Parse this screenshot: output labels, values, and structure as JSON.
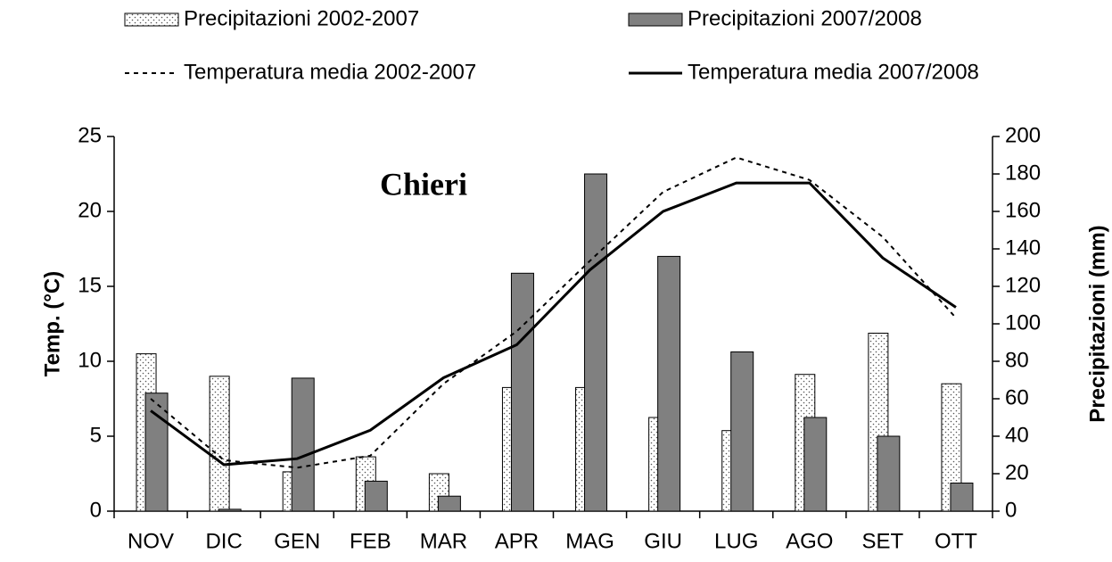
{
  "chart_data": {
    "type": "bar",
    "title": "Chieri",
    "categories": [
      "NOV",
      "DIC",
      "GEN",
      "FEB",
      "MAR",
      "APR",
      "MAG",
      "GIU",
      "LUG",
      "AGO",
      "SET",
      "OTT"
    ],
    "series": [
      {
        "name": "Precipitazioni 2002-2007",
        "type": "bar",
        "axis": "y2",
        "color": "#ffffff",
        "values": [
          84,
          72,
          21,
          29,
          20,
          66,
          66,
          50,
          43,
          73,
          95,
          68
        ]
      },
      {
        "name": "Precipitazioni 2007/2008",
        "type": "bar",
        "axis": "y2",
        "color": "#808080",
        "values": [
          63,
          1,
          71,
          16,
          8,
          127,
          180,
          136,
          85,
          50,
          40,
          15
        ]
      },
      {
        "name": "Temperatura media 2002-2007",
        "type": "line",
        "color": "#000000",
        "dashed": true,
        "values": [
          7.5,
          3.4,
          2.9,
          3.7,
          8.5,
          12,
          16.7,
          21.3,
          23.6,
          22.1,
          18.3,
          12.9
        ]
      },
      {
        "name": "Temperatura media 2007/2008",
        "type": "line",
        "color": "#000000",
        "dashed": false,
        "values": [
          6.7,
          3.1,
          3.5,
          5.4,
          8.9,
          11.1,
          16.1,
          20,
          21.9,
          21.9,
          16.9,
          13.6
        ]
      }
    ],
    "y_label": "Temp. (°C)",
    "y2_label": "Precipitazioni (mm)",
    "ylim": [
      0,
      25
    ],
    "yticks": [
      0,
      5,
      10,
      15,
      20,
      25
    ],
    "y2lim": [
      0,
      200
    ],
    "y2ticks": [
      0,
      20,
      40,
      60,
      80,
      100,
      120,
      140,
      160,
      180,
      200
    ],
    "legend": "top",
    "grid": false
  }
}
